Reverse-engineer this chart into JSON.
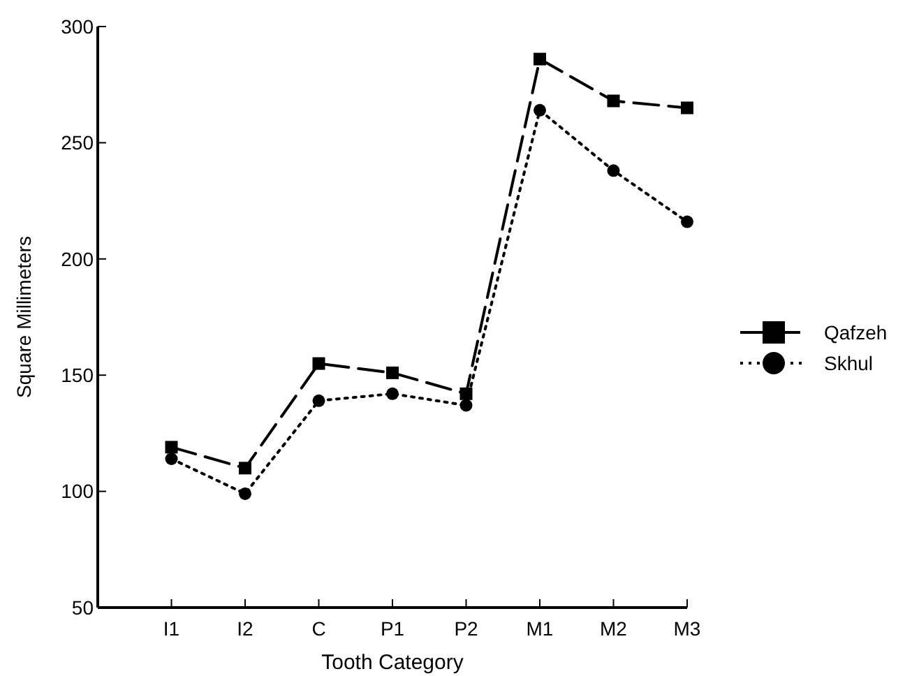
{
  "chart_data": {
    "type": "line",
    "xlabel": "Tooth Category",
    "ylabel": "Square Millimeters",
    "categories": [
      "I1",
      "I2",
      "C",
      "P1",
      "P2",
      "M1",
      "M2",
      "M3"
    ],
    "ylim": [
      50,
      300
    ],
    "yticks": [
      50,
      100,
      150,
      200,
      250,
      300
    ],
    "legend": "right",
    "grid": false,
    "series": [
      {
        "name": "Qafzeh",
        "color": "#000000",
        "marker": "square",
        "line_style": "dashed",
        "values": [
          119,
          110,
          155,
          151,
          142,
          286,
          268,
          265
        ]
      },
      {
        "name": "Skhul",
        "color": "#000000",
        "marker": "circle",
        "line_style": "dotted",
        "values": [
          114,
          99,
          139,
          142,
          137,
          264,
          238,
          216
        ]
      }
    ]
  }
}
